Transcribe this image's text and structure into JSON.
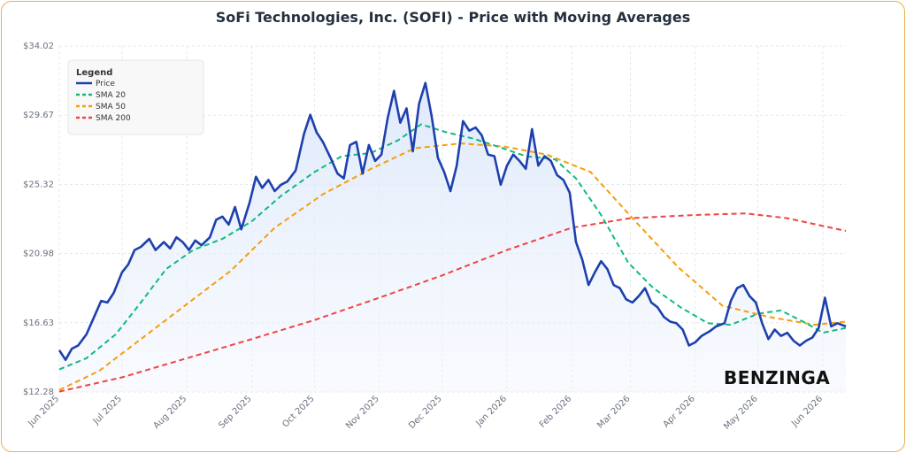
{
  "chart_data": {
    "type": "line",
    "title": "SoFi Technologies, Inc. (SOFI) - Price with Moving Averages",
    "xlabel": "",
    "ylabel": "",
    "ylim": [
      12.28,
      34.02
    ],
    "yticks": [
      "$34.02",
      "$29.67",
      "$25.32",
      "$20.98",
      "$16.63",
      "$12.28"
    ],
    "ytick_values": [
      34.02,
      29.67,
      25.32,
      20.98,
      16.63,
      12.28
    ],
    "xticks": [
      "Jun 2025",
      "Jul 2025",
      "Aug 2025",
      "Sep 2025",
      "Oct 2025",
      "Nov 2025",
      "Dec 2025",
      "Jan 2026",
      "Feb 2026",
      "Mar 2026",
      "Apr 2026",
      "May 2026",
      "Jun 2026"
    ],
    "grid": true,
    "legend_position": "top-left",
    "legend": {
      "title": "Legend",
      "items": [
        {
          "name": "Price",
          "color": "#1e40af",
          "dash": "solid"
        },
        {
          "name": "SMA 20",
          "color": "#10b981",
          "dash": "dashed"
        },
        {
          "name": "SMA 50",
          "color": "#f59e0b",
          "dash": "dashed"
        },
        {
          "name": "SMA 200",
          "color": "#ef4444",
          "dash": "dashed"
        }
      ]
    },
    "x_range": [
      "2025-06-01",
      "2026-06-12"
    ],
    "series": [
      {
        "name": "Price",
        "color": "#1e40af",
        "values": [
          [
            "2025-06-01",
            14.9
          ],
          [
            "2025-06-04",
            14.3
          ],
          [
            "2025-06-07",
            15.0
          ],
          [
            "2025-06-10",
            15.2
          ],
          [
            "2025-06-14",
            15.9
          ],
          [
            "2025-06-18",
            17.1
          ],
          [
            "2025-06-21",
            18.0
          ],
          [
            "2025-06-24",
            17.9
          ],
          [
            "2025-06-27",
            18.5
          ],
          [
            "2025-07-01",
            19.8
          ],
          [
            "2025-07-04",
            20.3
          ],
          [
            "2025-07-07",
            21.2
          ],
          [
            "2025-07-10",
            21.4
          ],
          [
            "2025-07-14",
            21.9
          ],
          [
            "2025-07-17",
            21.2
          ],
          [
            "2025-07-21",
            21.7
          ],
          [
            "2025-07-24",
            21.3
          ],
          [
            "2025-07-27",
            22.0
          ],
          [
            "2025-07-30",
            21.7
          ],
          [
            "2025-08-02",
            21.2
          ],
          [
            "2025-08-05",
            21.8
          ],
          [
            "2025-08-08",
            21.5
          ],
          [
            "2025-08-12",
            22.0
          ],
          [
            "2025-08-15",
            23.1
          ],
          [
            "2025-08-18",
            23.3
          ],
          [
            "2025-08-21",
            22.8
          ],
          [
            "2025-08-24",
            23.9
          ],
          [
            "2025-08-27",
            22.5
          ],
          [
            "2025-08-31",
            24.2
          ],
          [
            "2025-09-03",
            25.8
          ],
          [
            "2025-09-06",
            25.1
          ],
          [
            "2025-09-09",
            25.6
          ],
          [
            "2025-09-12",
            24.9
          ],
          [
            "2025-09-15",
            25.3
          ],
          [
            "2025-09-18",
            25.5
          ],
          [
            "2025-09-22",
            26.2
          ],
          [
            "2025-09-26",
            28.5
          ],
          [
            "2025-09-29",
            29.7
          ],
          [
            "2025-10-02",
            28.6
          ],
          [
            "2025-10-05",
            28.0
          ],
          [
            "2025-10-09",
            26.9
          ],
          [
            "2025-10-12",
            26.0
          ],
          [
            "2025-10-15",
            25.7
          ],
          [
            "2025-10-18",
            27.8
          ],
          [
            "2025-10-21",
            28.0
          ],
          [
            "2025-10-24",
            26.0
          ],
          [
            "2025-10-27",
            27.8
          ],
          [
            "2025-10-30",
            26.8
          ],
          [
            "2025-11-02",
            27.2
          ],
          [
            "2025-11-05",
            29.5
          ],
          [
            "2025-11-08",
            31.2
          ],
          [
            "2025-11-11",
            29.2
          ],
          [
            "2025-11-14",
            30.1
          ],
          [
            "2025-11-17",
            27.4
          ],
          [
            "2025-11-20",
            30.4
          ],
          [
            "2025-11-23",
            31.7
          ],
          [
            "2025-11-26",
            29.6
          ],
          [
            "2025-11-29",
            27.0
          ],
          [
            "2025-12-02",
            26.1
          ],
          [
            "2025-12-05",
            24.9
          ],
          [
            "2025-12-08",
            26.5
          ],
          [
            "2025-12-11",
            29.3
          ],
          [
            "2025-12-14",
            28.7
          ],
          [
            "2025-12-17",
            28.9
          ],
          [
            "2025-12-20",
            28.4
          ],
          [
            "2025-12-23",
            27.2
          ],
          [
            "2025-12-26",
            27.1
          ],
          [
            "2025-12-29",
            25.3
          ],
          [
            "2026-01-01",
            26.5
          ],
          [
            "2026-01-04",
            27.2
          ],
          [
            "2026-01-07",
            26.8
          ],
          [
            "2026-01-10",
            26.3
          ],
          [
            "2026-01-13",
            28.8
          ],
          [
            "2026-01-16",
            26.5
          ],
          [
            "2026-01-19",
            27.1
          ],
          [
            "2026-01-22",
            26.8
          ],
          [
            "2026-01-25",
            25.9
          ],
          [
            "2026-01-28",
            25.6
          ],
          [
            "2026-01-31",
            24.8
          ],
          [
            "2026-02-03",
            21.7
          ],
          [
            "2026-02-06",
            20.6
          ],
          [
            "2026-02-09",
            19.0
          ],
          [
            "2026-02-12",
            19.8
          ],
          [
            "2026-02-15",
            20.5
          ],
          [
            "2026-02-18",
            20.0
          ],
          [
            "2026-02-21",
            19.0
          ],
          [
            "2026-02-24",
            18.8
          ],
          [
            "2026-02-27",
            18.1
          ],
          [
            "2026-03-02",
            17.9
          ],
          [
            "2026-03-05",
            18.3
          ],
          [
            "2026-03-08",
            18.8
          ],
          [
            "2026-03-11",
            17.9
          ],
          [
            "2026-03-14",
            17.6
          ],
          [
            "2026-03-17",
            17.0
          ],
          [
            "2026-03-20",
            16.7
          ],
          [
            "2026-03-23",
            16.6
          ],
          [
            "2026-03-26",
            16.2
          ],
          [
            "2026-03-29",
            15.2
          ],
          [
            "2026-04-01",
            15.4
          ],
          [
            "2026-04-04",
            15.8
          ],
          [
            "2026-04-08",
            16.1
          ],
          [
            "2026-04-11",
            16.4
          ],
          [
            "2026-04-15",
            16.6
          ],
          [
            "2026-04-18",
            18.0
          ],
          [
            "2026-04-21",
            18.8
          ],
          [
            "2026-04-24",
            19.0
          ],
          [
            "2026-04-27",
            18.3
          ],
          [
            "2026-04-30",
            17.9
          ],
          [
            "2026-05-03",
            16.6
          ],
          [
            "2026-05-06",
            15.6
          ],
          [
            "2026-05-09",
            16.2
          ],
          [
            "2026-05-12",
            15.8
          ],
          [
            "2026-05-15",
            16.0
          ],
          [
            "2026-05-18",
            15.5
          ],
          [
            "2026-05-21",
            15.2
          ],
          [
            "2026-05-24",
            15.5
          ],
          [
            "2026-05-27",
            15.7
          ],
          [
            "2026-05-30",
            16.3
          ],
          [
            "2026-06-02",
            18.2
          ],
          [
            "2026-06-05",
            16.4
          ],
          [
            "2026-06-08",
            16.6
          ],
          [
            "2026-06-12",
            16.4
          ]
        ]
      },
      {
        "name": "SMA 20",
        "color": "#10b981",
        "values": [
          [
            "2025-06-01",
            13.7
          ],
          [
            "2025-06-14",
            14.4
          ],
          [
            "2025-06-28",
            15.9
          ],
          [
            "2025-07-10",
            17.9
          ],
          [
            "2025-07-22",
            20.0
          ],
          [
            "2025-08-04",
            21.2
          ],
          [
            "2025-08-18",
            21.9
          ],
          [
            "2025-09-01",
            23.0
          ],
          [
            "2025-09-15",
            24.6
          ],
          [
            "2025-10-01",
            26.1
          ],
          [
            "2025-10-14",
            27.1
          ],
          [
            "2025-10-28",
            27.3
          ],
          [
            "2025-11-10",
            28.1
          ],
          [
            "2025-11-21",
            29.1
          ],
          [
            "2025-12-03",
            28.6
          ],
          [
            "2025-12-16",
            28.2
          ],
          [
            "2025-12-30",
            27.6
          ],
          [
            "2026-01-10",
            27.1
          ],
          [
            "2026-01-24",
            26.9
          ],
          [
            "2026-02-03",
            25.7
          ],
          [
            "2026-02-15",
            23.4
          ],
          [
            "2026-02-28",
            20.4
          ],
          [
            "2026-03-12",
            18.8
          ],
          [
            "2026-03-25",
            17.6
          ],
          [
            "2026-04-07",
            16.6
          ],
          [
            "2026-04-18",
            16.5
          ],
          [
            "2026-05-01",
            17.2
          ],
          [
            "2026-05-12",
            17.4
          ],
          [
            "2026-05-24",
            16.6
          ],
          [
            "2026-06-01",
            16.0
          ],
          [
            "2026-06-12",
            16.3
          ]
        ]
      },
      {
        "name": "SMA 50",
        "color": "#f59e0b",
        "values": [
          [
            "2025-06-01",
            12.4
          ],
          [
            "2025-06-20",
            13.6
          ],
          [
            "2025-07-10",
            15.6
          ],
          [
            "2025-08-01",
            17.8
          ],
          [
            "2025-08-22",
            19.9
          ],
          [
            "2025-09-12",
            22.6
          ],
          [
            "2025-10-05",
            24.7
          ],
          [
            "2025-10-28",
            26.3
          ],
          [
            "2025-11-18",
            27.6
          ],
          [
            "2025-12-10",
            27.9
          ],
          [
            "2025-12-31",
            27.7
          ],
          [
            "2026-01-20",
            27.2
          ],
          [
            "2026-02-10",
            26.1
          ],
          [
            "2026-03-02",
            23.2
          ],
          [
            "2026-03-24",
            20.1
          ],
          [
            "2026-04-14",
            17.7
          ],
          [
            "2026-05-06",
            17.0
          ],
          [
            "2026-05-28",
            16.5
          ],
          [
            "2026-06-12",
            16.7
          ]
        ]
      },
      {
        "name": "SMA 200",
        "color": "#ef4444",
        "values": [
          [
            "2025-06-01",
            12.3
          ],
          [
            "2025-07-01",
            13.2
          ],
          [
            "2025-08-01",
            14.4
          ],
          [
            "2025-09-01",
            15.6
          ],
          [
            "2025-10-01",
            16.8
          ],
          [
            "2025-11-01",
            18.2
          ],
          [
            "2025-12-01",
            19.6
          ],
          [
            "2026-01-01",
            21.2
          ],
          [
            "2026-02-01",
            22.6
          ],
          [
            "2026-03-01",
            23.2
          ],
          [
            "2026-04-01",
            23.4
          ],
          [
            "2026-04-25",
            23.5
          ],
          [
            "2026-05-15",
            23.2
          ],
          [
            "2026-06-12",
            22.4
          ]
        ]
      }
    ]
  },
  "watermark": "BENZINGA"
}
